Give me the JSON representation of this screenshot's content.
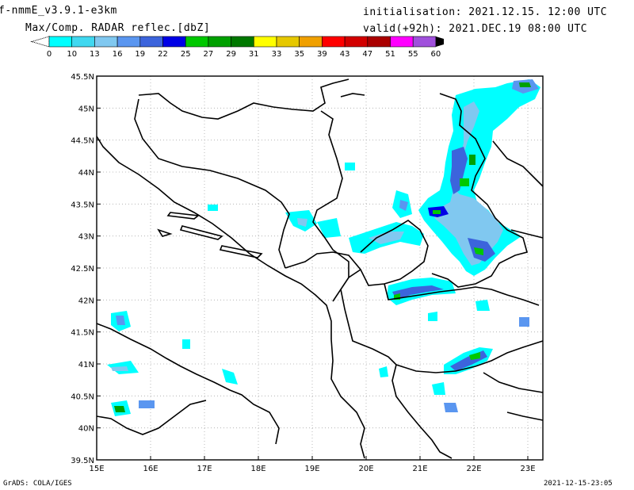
{
  "header": {
    "model": "f-nmmE_v3.9.1-e3km",
    "product": "Max/Comp. RADAR reflec.[dbZ]",
    "initialisation": "initialisation: 2021.12.15. 12:00 UTC",
    "valid": "valid(+92h): 2021.DEC.19 08:00 UTC"
  },
  "colorbar": {
    "labels": [
      "0",
      "10",
      "13",
      "16",
      "19",
      "22",
      "25",
      "27",
      "29",
      "31",
      "33",
      "35",
      "39",
      "43",
      "47",
      "51",
      "55",
      "60"
    ],
    "colors": [
      "#00ffff",
      "#40d8f0",
      "#80c8f0",
      "#5a96f0",
      "#3c64dc",
      "#0000e6",
      "#00c800",
      "#00a000",
      "#007800",
      "#ffff00",
      "#e6c800",
      "#f0a000",
      "#ff0000",
      "#d20000",
      "#aa0000",
      "#ff00ff",
      "#a050dc"
    ],
    "arrow_color": "#000000"
  },
  "map": {
    "lon_labels": [
      "15E",
      "16E",
      "17E",
      "18E",
      "19E",
      "20E",
      "21E",
      "22E",
      "23E"
    ],
    "lat_labels": [
      "45.5N",
      "45N",
      "44.5N",
      "44N",
      "43.5N",
      "43N",
      "42.5N",
      "42N",
      "41.5N",
      "41N",
      "40.5N",
      "40N",
      "39.5N"
    ]
  },
  "footer": {
    "left": "GrADS: COLA/IGES",
    "right": "2021-12-15-23:05"
  }
}
